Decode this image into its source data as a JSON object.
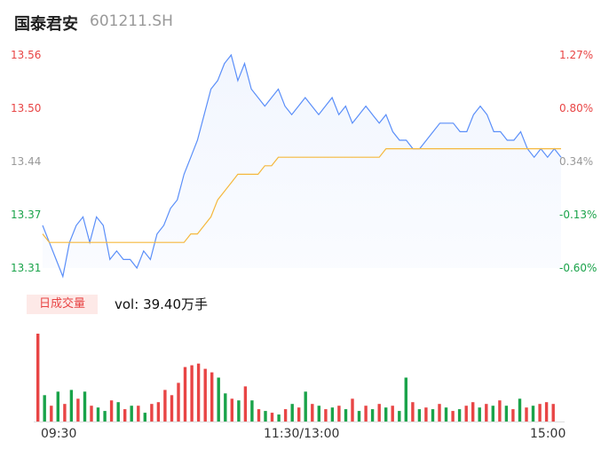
{
  "header": {
    "name": "国泰君安",
    "code": "601211.SH"
  },
  "volume_panel": {
    "badge": "日成交量",
    "vol_prefix": "vol:",
    "vol_value": "39.40万手"
  },
  "colors": {
    "up": "#e84545",
    "down": "#1aa34a",
    "flat": "#999999",
    "price": "#5b8ff9",
    "avg": "#f5b83d"
  },
  "chart_data": [
    {
      "type": "line",
      "title": "",
      "ylim": [
        13.31,
        13.56
      ],
      "y_ticks_left": [
        "13.56",
        "13.50",
        "13.44",
        "13.37",
        "13.31"
      ],
      "y_ticks_right": [
        "1.27%",
        "0.80%",
        "0.34%",
        "-0.13%",
        "-0.60%"
      ],
      "x_ticks": [
        "09:30",
        "11:30/13:00",
        "15:00"
      ],
      "series": [
        {
          "name": "price",
          "values": [
            13.36,
            13.34,
            13.32,
            13.3,
            13.34,
            13.36,
            13.37,
            13.34,
            13.37,
            13.36,
            13.32,
            13.33,
            13.32,
            13.32,
            13.31,
            13.33,
            13.32,
            13.35,
            13.36,
            13.38,
            13.39,
            13.42,
            13.44,
            13.46,
            13.49,
            13.52,
            13.53,
            13.55,
            13.56,
            13.53,
            13.55,
            13.52,
            13.51,
            13.5,
            13.51,
            13.52,
            13.5,
            13.49,
            13.5,
            13.51,
            13.5,
            13.49,
            13.5,
            13.51,
            13.49,
            13.5,
            13.48,
            13.49,
            13.5,
            13.49,
            13.48,
            13.49,
            13.47,
            13.46,
            13.46,
            13.45,
            13.45,
            13.46,
            13.47,
            13.48,
            13.48,
            13.48,
            13.47,
            13.47,
            13.49,
            13.5,
            13.49,
            13.47,
            13.47,
            13.46,
            13.46,
            13.47,
            13.45,
            13.44,
            13.45,
            13.44,
            13.45,
            13.44
          ]
        },
        {
          "name": "avg",
          "values": [
            13.35,
            13.34,
            13.34,
            13.34,
            13.34,
            13.34,
            13.34,
            13.34,
            13.34,
            13.34,
            13.34,
            13.34,
            13.34,
            13.34,
            13.34,
            13.34,
            13.34,
            13.34,
            13.34,
            13.34,
            13.34,
            13.34,
            13.35,
            13.35,
            13.36,
            13.37,
            13.39,
            13.4,
            13.41,
            13.42,
            13.42,
            13.42,
            13.42,
            13.43,
            13.43,
            13.44,
            13.44,
            13.44,
            13.44,
            13.44,
            13.44,
            13.44,
            13.44,
            13.44,
            13.44,
            13.44,
            13.44,
            13.44,
            13.44,
            13.44,
            13.44,
            13.45,
            13.45,
            13.45,
            13.45,
            13.45,
            13.45,
            13.45,
            13.45,
            13.45,
            13.45,
            13.45,
            13.45,
            13.45,
            13.45,
            13.45,
            13.45,
            13.45,
            13.45,
            13.45,
            13.45,
            13.45,
            13.45,
            13.45,
            13.45,
            13.45,
            13.45,
            13.45
          ]
        }
      ]
    },
    {
      "type": "bar",
      "title": "",
      "volumes": [
        1.0,
        0.3,
        0.18,
        0.34,
        0.2,
        0.36,
        0.26,
        0.34,
        0.18,
        0.16,
        0.12,
        0.24,
        0.22,
        0.14,
        0.18,
        0.18,
        0.1,
        0.2,
        0.22,
        0.36,
        0.3,
        0.44,
        0.62,
        0.64,
        0.66,
        0.6,
        0.56,
        0.5,
        0.32,
        0.26,
        0.24,
        0.4,
        0.24,
        0.14,
        0.12,
        0.1,
        0.08,
        0.14,
        0.2,
        0.16,
        0.34,
        0.2,
        0.18,
        0.14,
        0.16,
        0.18,
        0.14,
        0.26,
        0.12,
        0.18,
        0.14,
        0.2,
        0.16,
        0.18,
        0.12,
        0.5,
        0.22,
        0.14,
        0.16,
        0.14,
        0.2,
        0.16,
        0.12,
        0.14,
        0.18,
        0.22,
        0.16,
        0.2,
        0.18,
        0.24,
        0.18,
        0.14,
        0.26,
        0.16,
        0.18,
        0.2,
        0.22,
        0.2
      ],
      "directions": [
        "up",
        "down",
        "up",
        "down",
        "up",
        "down",
        "up",
        "down",
        "up",
        "down",
        "down",
        "up",
        "down",
        "up",
        "down",
        "up",
        "down",
        "up",
        "up",
        "up",
        "up",
        "up",
        "up",
        "up",
        "up",
        "up",
        "up",
        "down",
        "down",
        "up",
        "down",
        "up",
        "down",
        "up",
        "down",
        "up",
        "down",
        "up",
        "down",
        "up",
        "down",
        "up",
        "down",
        "up",
        "down",
        "up",
        "down",
        "up",
        "down",
        "up",
        "down",
        "up",
        "down",
        "up",
        "down",
        "down",
        "up",
        "down",
        "up",
        "down",
        "up",
        "down",
        "up",
        "down",
        "up",
        "up",
        "down",
        "up",
        "down",
        "up",
        "down",
        "up",
        "down",
        "up",
        "down",
        "up",
        "up",
        "up"
      ]
    }
  ]
}
